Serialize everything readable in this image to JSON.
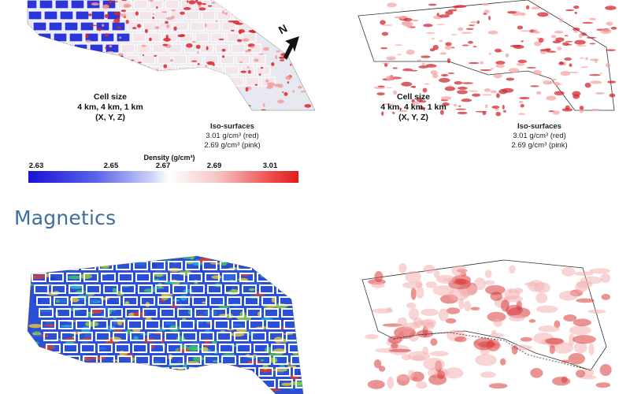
{
  "gravity": {
    "cell_size": {
      "title": "Cell size",
      "dims": "4 km, 4 km, 1 km",
      "axes": "(X, Y, Z)"
    },
    "iso_surfaces": {
      "title": "Iso-surfaces",
      "red": "3.01 g/cm³ (red)",
      "pink": "2.69 g/cm³ (pink)"
    },
    "colorbar": {
      "title": "Density (g/cm³)",
      "ticks": [
        "2.63",
        "2.65",
        "2.67",
        "2.69",
        "3.01"
      ],
      "colors": [
        "#1a12d6",
        "#ffffff",
        "#e11a1a"
      ]
    },
    "north_label": "N"
  },
  "magnetics": {
    "section_title": "Magnetics"
  }
}
